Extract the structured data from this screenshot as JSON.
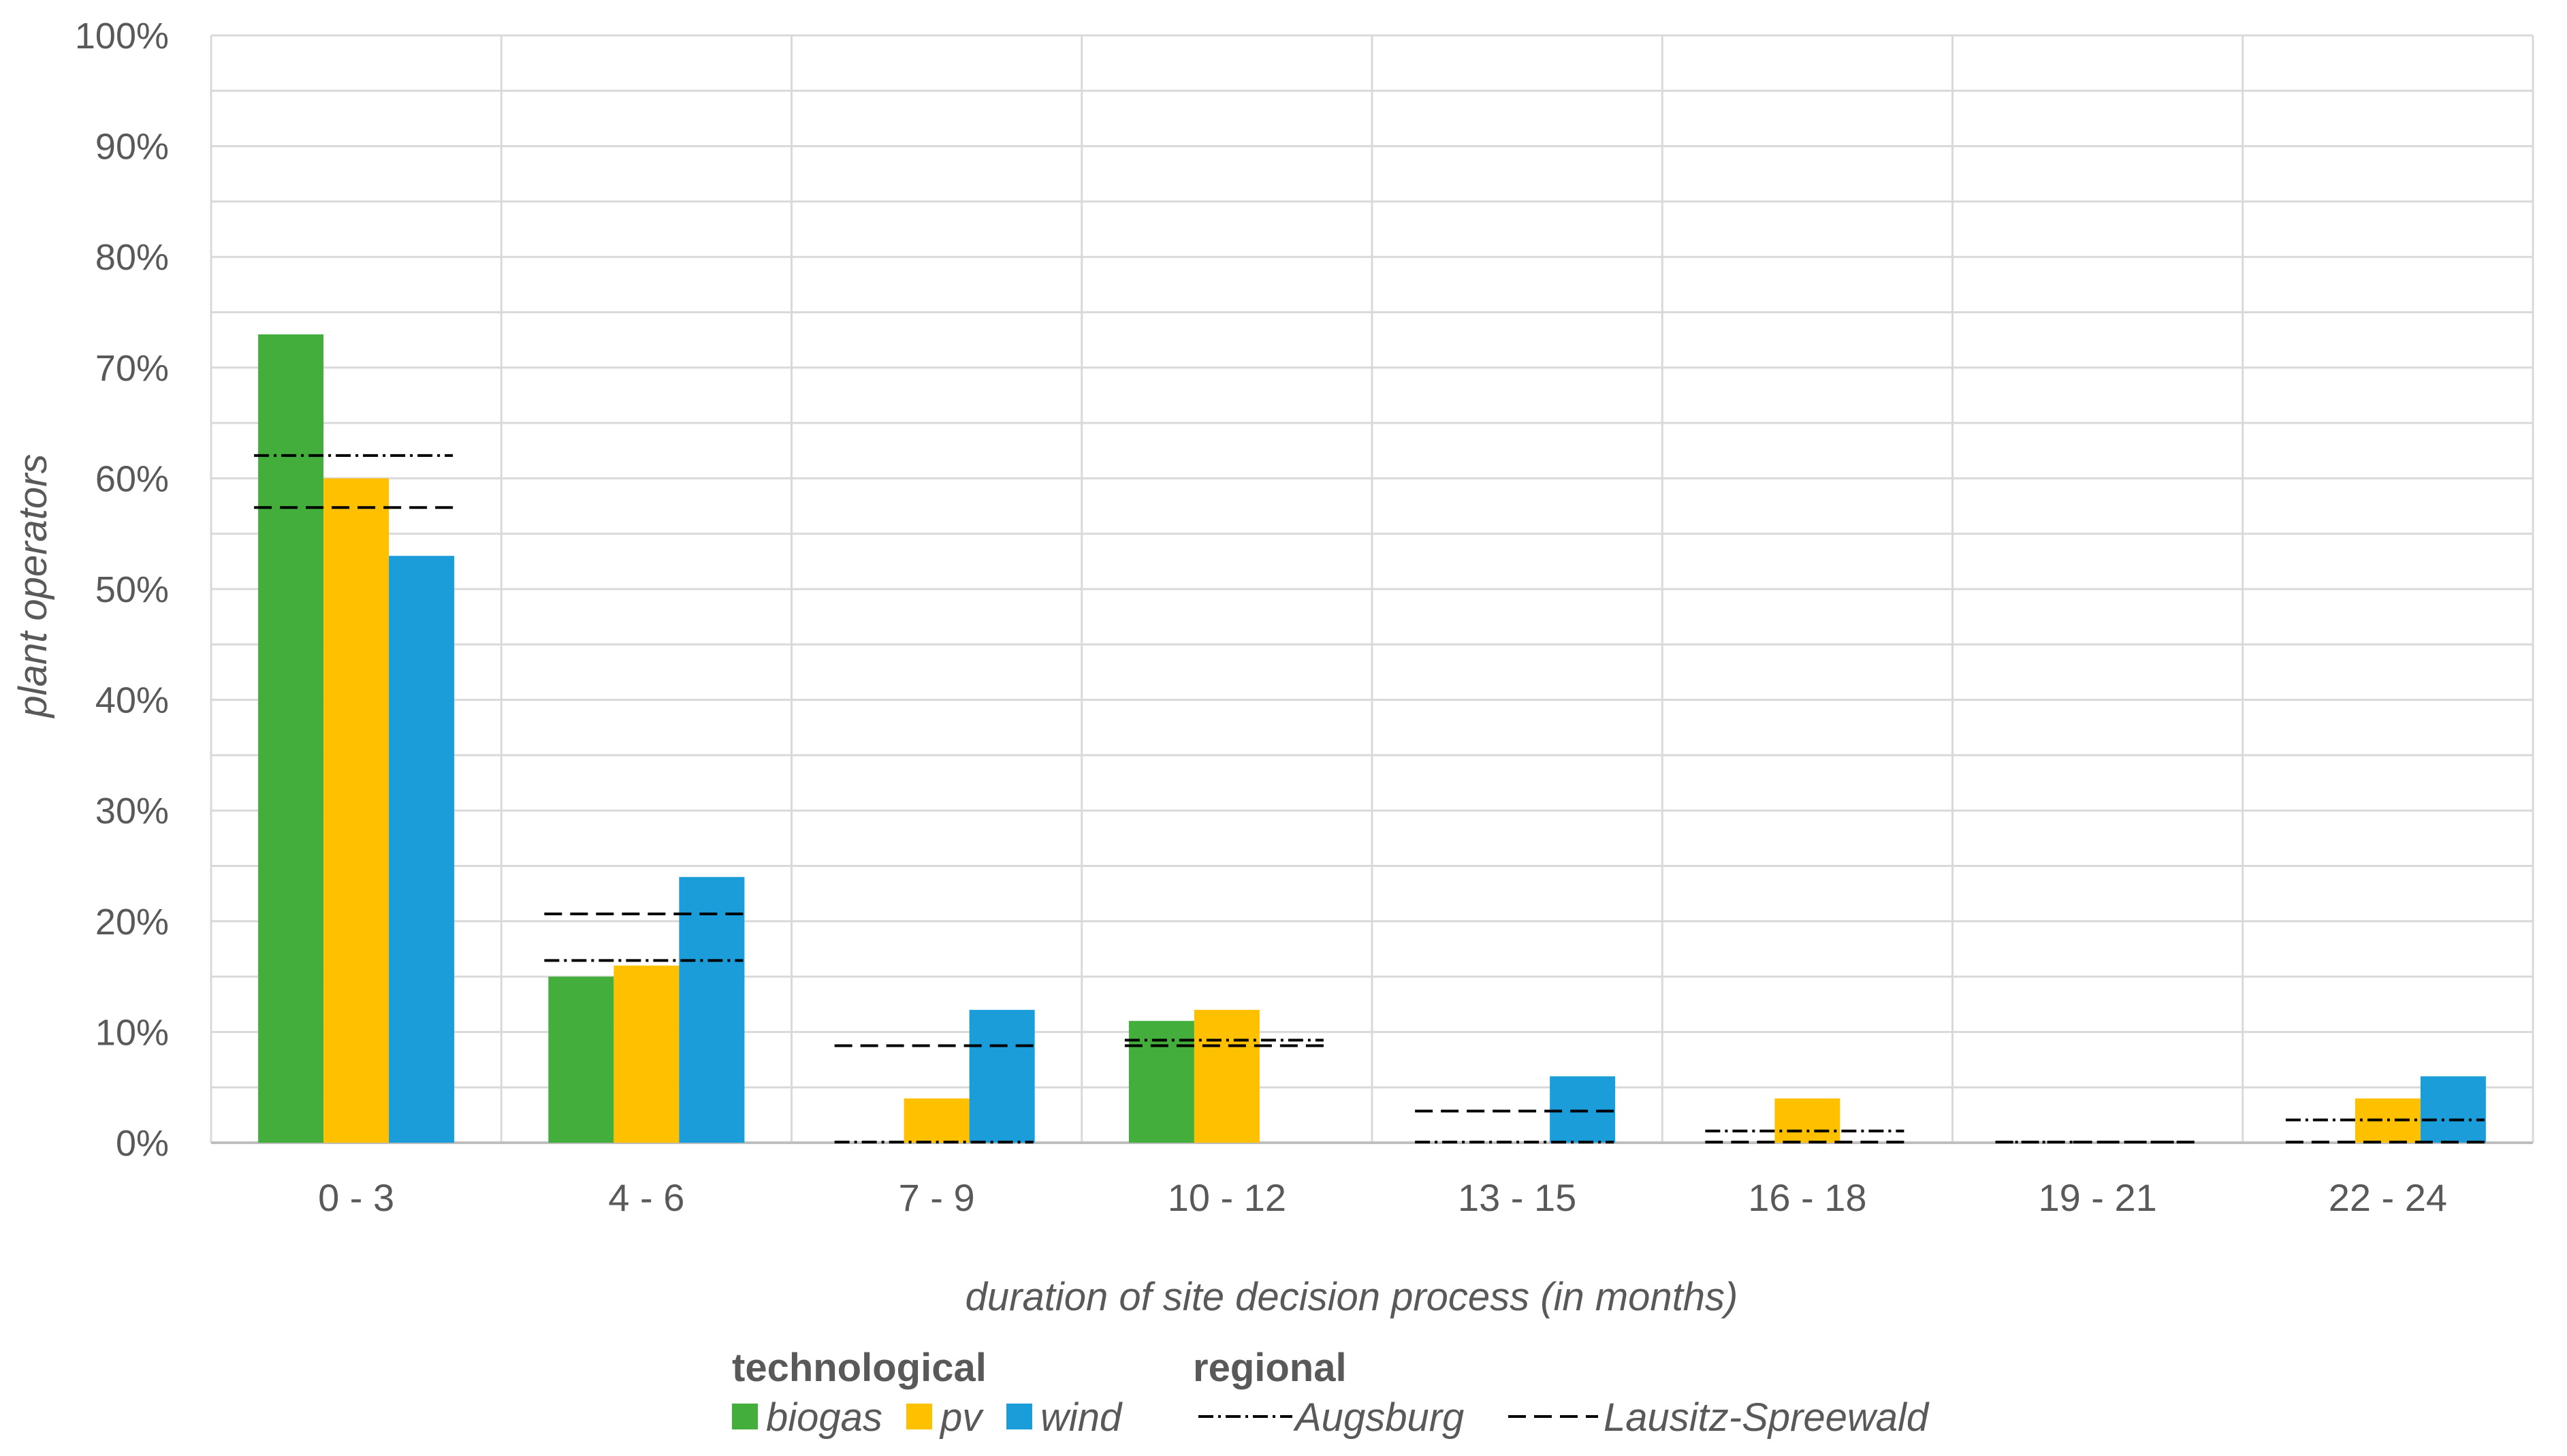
{
  "chart_data": {
    "type": "bar",
    "title": "",
    "xlabel": "duration of site decision process (in months)",
    "ylabel": "plant operators",
    "ylim": [
      0,
      100
    ],
    "yticks": [
      "0%",
      "10%",
      "20%",
      "30%",
      "40%",
      "50%",
      "60%",
      "70%",
      "80%",
      "90%",
      "100%"
    ],
    "grid": true,
    "categories": [
      "0 - 3",
      "4 - 6",
      "7 - 9",
      "10 - 12",
      "13 - 15",
      "16 - 18",
      "19 - 21",
      "22 - 24"
    ],
    "series": [
      {
        "name": "biogas",
        "group": "technological",
        "kind": "bar",
        "color": "#43AE3C",
        "values": [
          73,
          15,
          0,
          11,
          0,
          0,
          0,
          0
        ]
      },
      {
        "name": "pv",
        "group": "technological",
        "kind": "bar",
        "color": "#FFC000",
        "values": [
          60,
          16,
          4,
          12,
          0,
          4,
          0,
          4
        ]
      },
      {
        "name": "wind",
        "group": "technological",
        "kind": "bar",
        "color": "#1B9DD9",
        "values": [
          53,
          24,
          12,
          0,
          6,
          0,
          0,
          6
        ]
      },
      {
        "name": "Augsburg",
        "group": "regional",
        "kind": "dash-dot-line",
        "color": "#000000",
        "values": [
          62,
          16.4,
          0,
          9.2,
          0,
          1,
          0,
          2
        ]
      },
      {
        "name": "Lausitz-Spreewald",
        "group": "regional",
        "kind": "dashed-line",
        "color": "#000000",
        "values": [
          57.3,
          20.6,
          8.7,
          8.7,
          2.8,
          0,
          0,
          0
        ]
      }
    ],
    "legend": {
      "placement": "bottom",
      "groups": [
        {
          "heading": "technological",
          "entries": [
            "biogas",
            "pv",
            "wind"
          ]
        },
        {
          "heading": "regional",
          "entries": [
            "Augsburg",
            "Lausitz-Spreewald"
          ]
        }
      ]
    }
  }
}
